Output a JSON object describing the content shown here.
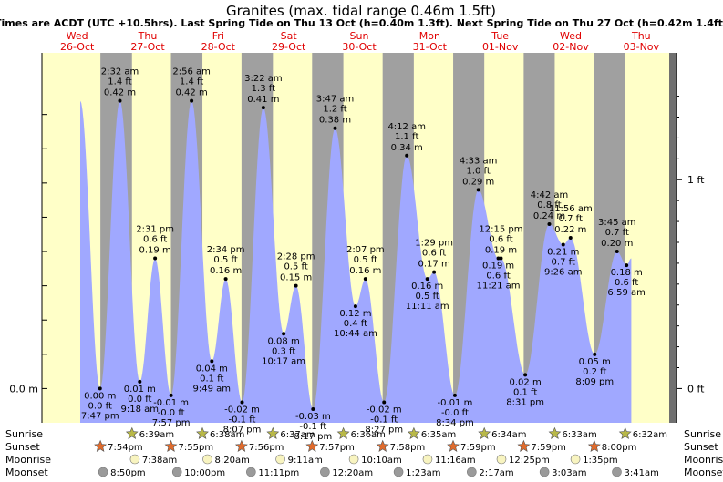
{
  "chart_data": {
    "type": "area",
    "title": "Granites (max. tidal range 0.46m 1.5ft)",
    "subtitle": "Times are ACDT (UTC +10.5hrs). Last Spring Tide on Thu 13 Oct (h=0.40m 1.3ft). Next Spring Tide on Thu 27 Oct (h=0.42m 1.4ft)",
    "days": [
      {
        "weekday": "Wed",
        "date": "26-Oct"
      },
      {
        "weekday": "Thu",
        "date": "27-Oct"
      },
      {
        "weekday": "Fri",
        "date": "28-Oct"
      },
      {
        "weekday": "Sat",
        "date": "29-Oct"
      },
      {
        "weekday": "Sun",
        "date": "30-Oct"
      },
      {
        "weekday": "Mon",
        "date": "31-Oct"
      },
      {
        "weekday": "Tue",
        "date": "01-Nov"
      },
      {
        "weekday": "Wed",
        "date": "02-Nov"
      },
      {
        "weekday": "Thu",
        "date": "03-Nov"
      }
    ],
    "y_axis_left_label": "0.0 m",
    "y_axis_right_labels": [
      "1 ft",
      "0 ft"
    ],
    "ylim_m": [
      -0.05,
      0.49
    ],
    "x_range_hours": [
      0,
      216
    ],
    "series": [
      {
        "values": [
          {
            "x": 19.78,
            "y": 0.0,
            "ft": "0.0 ft",
            "time": "7:47 pm",
            "type": "low"
          },
          {
            "x": 26.53,
            "y": 0.42,
            "ft": "1.4 ft",
            "time": "2:32 am",
            "type": "high"
          },
          {
            "x": 33.3,
            "y": 0.01,
            "ft": "0.0 ft",
            "time": "9:18 am",
            "type": "low"
          },
          {
            "x": 38.52,
            "y": 0.19,
            "ft": "0.6 ft",
            "time": "2:31 pm",
            "type": "high"
          },
          {
            "x": 43.95,
            "y": -0.01,
            "ft": "-0.0 ft",
            "time": "7:57 pm",
            "type": "low"
          },
          {
            "x": 50.93,
            "y": 0.42,
            "ft": "1.4 ft",
            "time": "2:56 am",
            "type": "high"
          },
          {
            "x": 57.82,
            "y": 0.04,
            "ft": "0.1 ft",
            "time": "9:49 am",
            "type": "low"
          },
          {
            "x": 62.57,
            "y": 0.16,
            "ft": "0.5 ft",
            "time": "2:34 pm",
            "type": "high"
          },
          {
            "x": 68.12,
            "y": -0.02,
            "ft": "-0.1 ft",
            "time": "8:07 pm",
            "type": "low"
          },
          {
            "x": 75.37,
            "y": 0.41,
            "ft": "1.3 ft",
            "time": "3:22 am",
            "type": "high"
          },
          {
            "x": 82.28,
            "y": 0.08,
            "ft": "0.3 ft",
            "time": "10:17 am",
            "type": "low"
          },
          {
            "x": 86.47,
            "y": 0.15,
            "ft": "0.5 ft",
            "time": "2:28 pm",
            "type": "high"
          },
          {
            "x": 92.28,
            "y": -0.03,
            "ft": "-0.1 ft",
            "time": "8:17 pm",
            "type": "low"
          },
          {
            "x": 99.78,
            "y": 0.38,
            "ft": "1.2 ft",
            "time": "3:47 am",
            "type": "high"
          },
          {
            "x": 106.73,
            "y": 0.12,
            "ft": "0.4 ft",
            "time": "10:44 am",
            "type": "low"
          },
          {
            "x": 110.12,
            "y": 0.16,
            "ft": "0.5 ft",
            "time": "2:07 pm",
            "type": "high"
          },
          {
            "x": 116.45,
            "y": -0.02,
            "ft": "-0.1 ft",
            "time": "8:27 pm",
            "type": "low"
          },
          {
            "x": 124.2,
            "y": 0.34,
            "ft": "1.1 ft",
            "time": "4:12 am",
            "type": "high"
          },
          {
            "x": 131.18,
            "y": 0.16,
            "ft": "0.5 ft",
            "time": "11:11 am",
            "type": "low"
          },
          {
            "x": 133.48,
            "y": 0.17,
            "ft": "0.6 ft",
            "time": "1:29 pm",
            "type": "high"
          },
          {
            "x": 140.57,
            "y": -0.01,
            "ft": "-0.0 ft",
            "time": "8:34 pm",
            "type": "low"
          },
          {
            "x": 148.55,
            "y": 0.29,
            "ft": "1.0 ft",
            "time": "4:33 am",
            "type": "high"
          },
          {
            "x": 155.35,
            "y": 0.19,
            "ft": "0.6 ft",
            "time": "11:21 am",
            "type": "low"
          },
          {
            "x": 156.25,
            "y": 0.19,
            "ft": "0.6 ft",
            "time": "12:15 pm",
            "type": "high"
          },
          {
            "x": 164.52,
            "y": 0.02,
            "ft": "0.1 ft",
            "time": "8:31 pm",
            "type": "low"
          },
          {
            "x": 172.7,
            "y": 0.24,
            "ft": "0.8 ft",
            "time": "4:42 am",
            "type": "high"
          },
          {
            "x": 177.43,
            "y": 0.21,
            "ft": "0.7 ft",
            "time": "9:26 am",
            "type": "low"
          },
          {
            "x": 179.93,
            "y": 0.22,
            "ft": "0.7 ft",
            "time": "11:56 am",
            "type": "high"
          },
          {
            "x": 188.15,
            "y": 0.05,
            "ft": "0.2 ft",
            "time": "8:09 pm",
            "type": "low"
          },
          {
            "x": 195.75,
            "y": 0.2,
            "ft": "0.7 ft",
            "time": "3:45 am",
            "type": "high"
          },
          {
            "x": 198.98,
            "y": 0.18,
            "ft": "0.6 ft",
            "time": "6:59 am",
            "type": "low"
          }
        ]
      }
    ],
    "sun_moon_rows": [
      {
        "label": "Sunrise",
        "symbol": "star",
        "color": "#b8b848",
        "events": [
          {
            "x": 30.65,
            "time": "6:39am"
          },
          {
            "x": 54.63,
            "time": "6:38am"
          },
          {
            "x": 78.62,
            "time": "6:37am"
          },
          {
            "x": 102.6,
            "time": "6:36am"
          },
          {
            "x": 126.58,
            "time": "6:35am"
          },
          {
            "x": 150.57,
            "time": "6:34am"
          },
          {
            "x": 174.55,
            "time": "6:33am"
          },
          {
            "x": 198.53,
            "time": "6:32am"
          }
        ]
      },
      {
        "label": "Sunset",
        "symbol": "star",
        "color": "#e06b2c",
        "events": [
          {
            "x": 19.9,
            "time": "7:54pm"
          },
          {
            "x": 43.92,
            "time": "7:55pm"
          },
          {
            "x": 67.93,
            "time": "7:56pm"
          },
          {
            "x": 91.95,
            "time": "7:57pm"
          },
          {
            "x": 115.97,
            "time": "7:58pm"
          },
          {
            "x": 139.98,
            "time": "7:59pm"
          },
          {
            "x": 163.98,
            "time": "7:59pm"
          },
          {
            "x": 188.0,
            "time": "8:00pm"
          }
        ]
      },
      {
        "label": "Moonrise",
        "symbol": "circle",
        "color": "#f8f4c0",
        "events": [
          {
            "x": 31.63,
            "time": "7:38am"
          },
          {
            "x": 56.33,
            "time": "8:20am"
          },
          {
            "x": 81.18,
            "time": "9:11am"
          },
          {
            "x": 106.17,
            "time": "10:10am"
          },
          {
            "x": 131.27,
            "time": "11:16am"
          },
          {
            "x": 156.42,
            "time": "12:25pm"
          },
          {
            "x": 181.58,
            "time": "1:35pm"
          }
        ]
      },
      {
        "label": "Moonset",
        "symbol": "circle",
        "color": "#9a9a9a",
        "events": [
          {
            "x": 20.83,
            "time": "8:50pm"
          },
          {
            "x": 46.0,
            "time": "10:00pm"
          },
          {
            "x": 71.18,
            "time": "11:11pm"
          },
          {
            "x": 96.33,
            "time": "12:20am"
          },
          {
            "x": 121.38,
            "time": "1:23am"
          },
          {
            "x": 146.28,
            "time": "2:17am"
          },
          {
            "x": 171.05,
            "time": "3:03am"
          },
          {
            "x": 195.68,
            "time": "3:41am"
          }
        ]
      }
    ],
    "colors": {
      "tide_fill": "#a0a8ff",
      "day": "#ffffc8",
      "night": "#a0a0a0",
      "dark_edge": "#707070",
      "day_label": "#e00000"
    }
  }
}
